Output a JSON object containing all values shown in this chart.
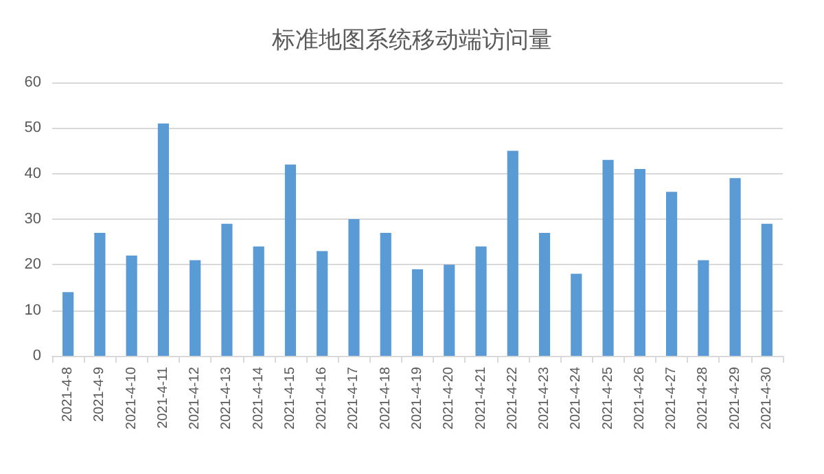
{
  "chart_data": {
    "type": "bar",
    "title": "标准地图系统移动端访问量",
    "categories": [
      "2021-4-8",
      "2021-4-9",
      "2021-4-10",
      "2021-4-11",
      "2021-4-12",
      "2021-4-13",
      "2021-4-14",
      "2021-4-15",
      "2021-4-16",
      "2021-4-17",
      "2021-4-18",
      "2021-4-19",
      "2021-4-20",
      "2021-4-21",
      "2021-4-22",
      "2021-4-23",
      "2021-4-24",
      "2021-4-25",
      "2021-4-26",
      "2021-4-27",
      "2021-4-28",
      "2021-4-29",
      "2021-4-30"
    ],
    "values": [
      14,
      27,
      22,
      51,
      21,
      29,
      24,
      42,
      23,
      30,
      27,
      19,
      20,
      24,
      45,
      27,
      18,
      43,
      41,
      36,
      21,
      39,
      29
    ],
    "color": "#5b9bd5",
    "ylim": [
      0,
      60
    ],
    "yticks": [
      0,
      10,
      20,
      30,
      40,
      50,
      60
    ],
    "grid": "y"
  }
}
